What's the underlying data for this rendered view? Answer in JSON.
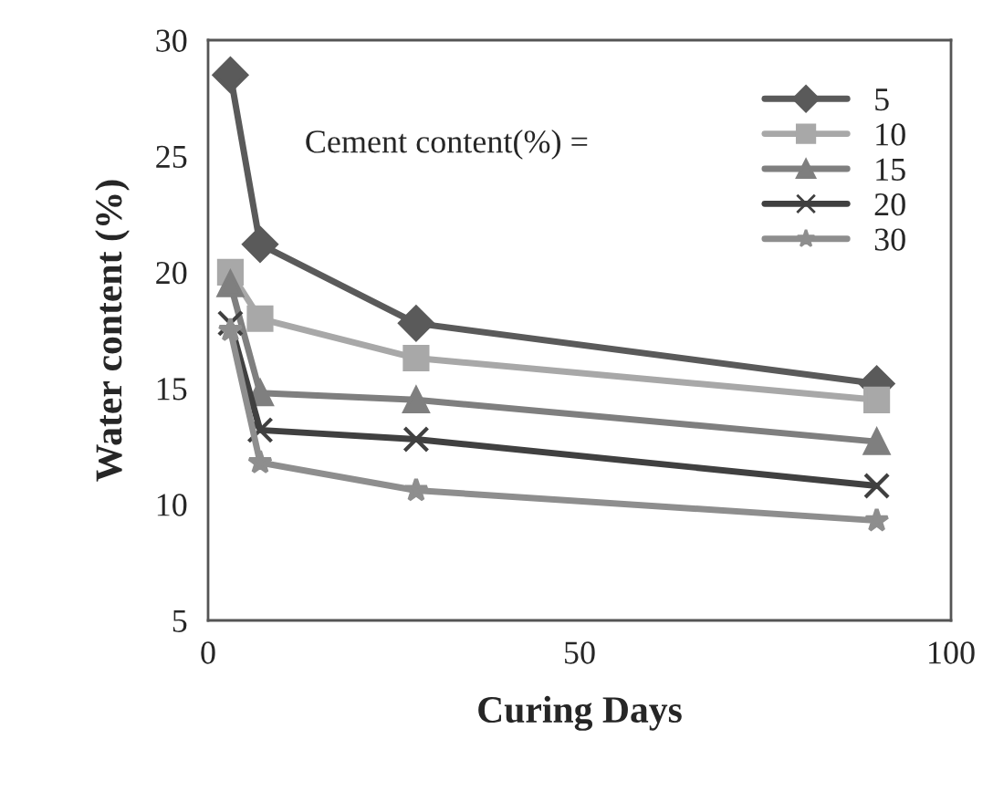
{
  "chart_data": {
    "type": "line",
    "xlabel": "Curing Days",
    "ylabel": "Water content (%)",
    "x": [
      3,
      7,
      28,
      90
    ],
    "series": [
      {
        "name": "5",
        "color": "#5a5a5a",
        "marker": "diamond",
        "values": [
          28.5,
          21.2,
          17.8,
          15.2
        ]
      },
      {
        "name": "10",
        "color": "#a8a8a8",
        "marker": "square",
        "values": [
          20.0,
          18.0,
          16.3,
          14.5
        ]
      },
      {
        "name": "15",
        "color": "#7f7f7f",
        "marker": "triangle",
        "values": [
          19.5,
          14.8,
          14.5,
          12.7
        ]
      },
      {
        "name": "20",
        "color": "#404040",
        "marker": "cross",
        "values": [
          17.8,
          13.2,
          12.8,
          10.8
        ]
      },
      {
        "name": "30",
        "color": "#8e8e8e",
        "marker": "star",
        "values": [
          17.5,
          11.8,
          10.6,
          9.3
        ]
      }
    ],
    "annotations": [
      "Cement content(%) ="
    ],
    "xlim": [
      0,
      100
    ],
    "xticks": [
      0,
      50,
      100
    ],
    "ylim": [
      5,
      30
    ],
    "yticks": [
      5,
      10,
      15,
      20,
      25,
      30
    ],
    "grid": false,
    "legend": "top right"
  }
}
